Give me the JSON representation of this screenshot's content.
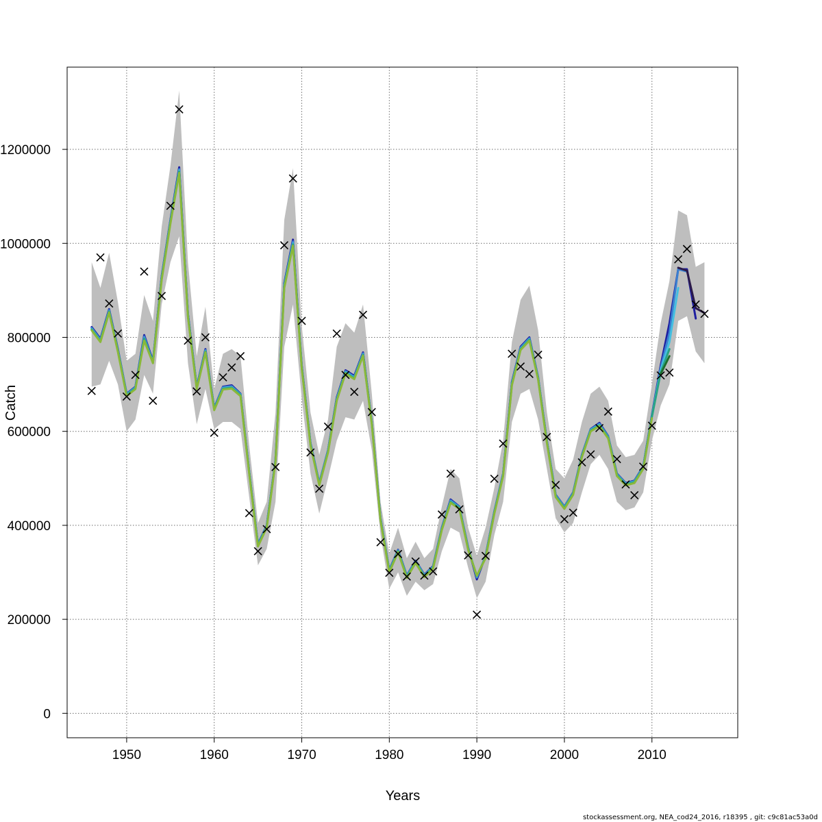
{
  "chart_data": {
    "type": "line",
    "title": "",
    "xlabel": "Years",
    "ylabel": "Catch",
    "footer": "stockassessment.org, NEA_cod24_2016, r18395 , git: c9c81ac53a0d",
    "xlim": [
      1943.2,
      2019.8
    ],
    "ylim": [
      -52000,
      1375000
    ],
    "x_ticks": [
      1950,
      1960,
      1970,
      1980,
      1990,
      2000,
      2010
    ],
    "x_tick_labels": [
      "1950",
      "1960",
      "1970",
      "1980",
      "1990",
      "2000",
      "2010"
    ],
    "y_ticks": [
      0,
      200000,
      400000,
      600000,
      800000,
      1000000,
      1200000
    ],
    "y_tick_labels": [
      "0",
      "200000",
      "400000",
      "600000",
      "800000",
      "1000000",
      "1200000"
    ],
    "grid": true,
    "confidence_band": {
      "x": [
        1946,
        1947,
        1948,
        1949,
        1950,
        1951,
        1952,
        1953,
        1954,
        1955,
        1956,
        1957,
        1958,
        1959,
        1960,
        1961,
        1962,
        1963,
        1964,
        1965,
        1966,
        1967,
        1968,
        1969,
        1970,
        1971,
        1972,
        1973,
        1974,
        1975,
        1976,
        1977,
        1978,
        1979,
        1980,
        1981,
        1982,
        1983,
        1984,
        1985,
        1986,
        1987,
        1988,
        1989,
        1990,
        1991,
        1992,
        1993,
        1994,
        1995,
        1996,
        1997,
        1998,
        1999,
        2000,
        2001,
        2002,
        2003,
        2004,
        2005,
        2006,
        2007,
        2008,
        2009,
        2010,
        2011,
        2012,
        2013,
        2014,
        2015,
        2016
      ],
      "upper": [
        960000,
        905000,
        980000,
        875000,
        750000,
        765000,
        890000,
        835000,
        1035000,
        1165000,
        1325000,
        960000,
        760000,
        865000,
        690000,
        765000,
        775000,
        760000,
        570000,
        405000,
        450000,
        640000,
        1050000,
        1160000,
        825000,
        640000,
        550000,
        625000,
        780000,
        830000,
        810000,
        870000,
        680000,
        450000,
        340000,
        395000,
        330000,
        365000,
        330000,
        350000,
        440000,
        520000,
        500000,
        395000,
        335000,
        395000,
        480000,
        580000,
        790000,
        880000,
        910000,
        815000,
        640000,
        520000,
        500000,
        540000,
        620000,
        680000,
        695000,
        665000,
        570000,
        545000,
        550000,
        580000,
        700000,
        830000,
        920000,
        1070000,
        1060000,
        950000,
        960000
      ],
      "lower": [
        695000,
        700000,
        750000,
        700000,
        600000,
        625000,
        720000,
        680000,
        870000,
        960000,
        1015000,
        745000,
        615000,
        690000,
        605000,
        620000,
        620000,
        605000,
        460000,
        315000,
        350000,
        450000,
        780000,
        870000,
        670000,
        510000,
        425000,
        500000,
        580000,
        630000,
        625000,
        665000,
        560000,
        380000,
        265000,
        300000,
        250000,
        280000,
        262000,
        275000,
        345000,
        395000,
        385000,
        310000,
        245000,
        280000,
        380000,
        450000,
        620000,
        680000,
        690000,
        625000,
        520000,
        415000,
        385000,
        405000,
        470000,
        530000,
        550000,
        520000,
        450000,
        432000,
        438000,
        470000,
        580000,
        655000,
        700000,
        835000,
        845000,
        770000,
        745000
      ]
    },
    "series": [
      {
        "color": "#1e1ea0",
        "x": [
          1946,
          1947,
          1948,
          1949,
          1950,
          1951,
          1952,
          1953,
          1954,
          1955,
          1956,
          1957,
          1958,
          1959,
          1960,
          1961,
          1962,
          1963,
          1964,
          1965,
          1966,
          1967,
          1968,
          1969,
          1970,
          1971,
          1972,
          1973,
          1974,
          1975,
          1976,
          1977,
          1978,
          1979,
          1980,
          1981,
          1982,
          1983,
          1984,
          1985,
          1986,
          1987,
          1988,
          1989,
          1990,
          1991,
          1992,
          1993,
          1994,
          1995,
          1996,
          1997,
          1998,
          1999,
          2000,
          2001,
          2002,
          2003,
          2004,
          2005,
          2006,
          2007,
          2008,
          2009,
          2010,
          2011,
          2012,
          2013,
          2014,
          2015
        ],
        "values": [
          822000,
          797000,
          860000,
          775000,
          680000,
          695000,
          805000,
          750000,
          930000,
          1050000,
          1162000,
          850000,
          695000,
          775000,
          650000,
          695000,
          698000,
          680000,
          515000,
          360000,
          400000,
          540000,
          915000,
          1008000,
          740000,
          575000,
          490000,
          560000,
          672000,
          730000,
          718000,
          768000,
          620000,
          415000,
          305000,
          348000,
          293000,
          325000,
          295000,
          313000,
          395000,
          455000,
          440000,
          353000,
          285000,
          335000,
          430000,
          510000,
          705000,
          780000,
          800000,
          715000,
          580000,
          465000,
          440000,
          470000,
          550000,
          605000,
          618000,
          590000,
          510000,
          490000,
          495000,
          525000,
          635000,
          740000,
          830000,
          945000,
          945000,
          840000
        ]
      },
      {
        "color": "#3a7fd0",
        "x": [
          1946,
          1947,
          1948,
          1949,
          1950,
          1951,
          1952,
          1953,
          1954,
          1955,
          1956,
          1957,
          1958,
          1959,
          1960,
          1961,
          1962,
          1963,
          1964,
          1965,
          1966,
          1967,
          1968,
          1969,
          1970,
          1971,
          1972,
          1973,
          1974,
          1975,
          1976,
          1977,
          1978,
          1979,
          1980,
          1981,
          1982,
          1983,
          1984,
          1985,
          1986,
          1987,
          1988,
          1989,
          1990,
          1991,
          1992,
          1993,
          1994,
          1995,
          1996,
          1997,
          1998,
          1999,
          2000,
          2001,
          2002,
          2003,
          2004,
          2005,
          2006,
          2007,
          2008,
          2009,
          2010,
          2011,
          2012,
          2013,
          2014
        ],
        "values": [
          820000,
          795000,
          858000,
          773000,
          679000,
          694000,
          802000,
          748000,
          928000,
          1048000,
          1158000,
          848000,
          694000,
          773000,
          649000,
          694000,
          696000,
          679000,
          514000,
          359000,
          399000,
          539000,
          912000,
          1004000,
          738000,
          574000,
          489000,
          559000,
          670000,
          728000,
          716000,
          766000,
          619000,
          414000,
          304000,
          347000,
          292000,
          324000,
          294000,
          312000,
          394000,
          453000,
          439000,
          352000,
          289000,
          334000,
          429000,
          509000,
          703000,
          778000,
          798000,
          714000,
          579000,
          464000,
          439000,
          469000,
          549000,
          604000,
          616000,
          589000,
          509000,
          489000,
          494000,
          524000,
          633000,
          735000,
          810000,
          945000,
          940000
        ]
      },
      {
        "color": "#44bfe0",
        "x": [
          1946,
          1947,
          1948,
          1949,
          1950,
          1951,
          1952,
          1953,
          1954,
          1955,
          1956,
          1957,
          1958,
          1959,
          1960,
          1961,
          1962,
          1963,
          1964,
          1965,
          1966,
          1967,
          1968,
          1969,
          1970,
          1971,
          1972,
          1973,
          1974,
          1975,
          1976,
          1977,
          1978,
          1979,
          1980,
          1981,
          1982,
          1983,
          1984,
          1985,
          1986,
          1987,
          1988,
          1989,
          1990,
          1991,
          1992,
          1993,
          1994,
          1995,
          1996,
          1997,
          1998,
          1999,
          2000,
          2001,
          2002,
          2003,
          2004,
          2005,
          2006,
          2007,
          2008,
          2009,
          2010,
          2011,
          2012,
          2013
        ],
        "values": [
          818000,
          793000,
          856000,
          772000,
          678000,
          693000,
          798000,
          747000,
          926000,
          1046000,
          1155000,
          846000,
          693000,
          771000,
          648000,
          692000,
          694000,
          678000,
          513000,
          358000,
          398000,
          538000,
          910000,
          1000000,
          737000,
          573000,
          488000,
          558000,
          668000,
          726000,
          714000,
          764000,
          618000,
          413000,
          303000,
          346000,
          291000,
          323000,
          293000,
          311000,
          393000,
          451000,
          438000,
          351000,
          291000,
          333000,
          428000,
          508000,
          701000,
          776000,
          796000,
          713000,
          578000,
          463000,
          438000,
          468000,
          548000,
          603000,
          614000,
          588000,
          508000,
          488000,
          493000,
          523000,
          632000,
          730000,
          790000,
          905000
        ]
      },
      {
        "color": "#2aa384",
        "x": [
          1946,
          1947,
          1948,
          1949,
          1950,
          1951,
          1952,
          1953,
          1954,
          1955,
          1956,
          1957,
          1958,
          1959,
          1960,
          1961,
          1962,
          1963,
          1964,
          1965,
          1966,
          1967,
          1968,
          1969,
          1970,
          1971,
          1972,
          1973,
          1974,
          1975,
          1976,
          1977,
          1978,
          1979,
          1980,
          1981,
          1982,
          1983,
          1984,
          1985,
          1986,
          1987,
          1988,
          1989,
          1990,
          1991,
          1992,
          1993,
          1994,
          1995,
          1996,
          1997,
          1998,
          1999,
          2000,
          2001,
          2002,
          2003,
          2004,
          2005,
          2006,
          2007,
          2008,
          2009,
          2010,
          2011,
          2012
        ],
        "values": [
          817000,
          792000,
          855000,
          771000,
          677000,
          692000,
          797000,
          746000,
          925000,
          1045000,
          1153000,
          845000,
          692000,
          770000,
          647000,
          691000,
          693000,
          677000,
          512000,
          357000,
          397000,
          537000,
          908000,
          998000,
          736000,
          572000,
          487000,
          557000,
          667000,
          725000,
          713000,
          763000,
          617000,
          412000,
          302000,
          345000,
          290000,
          322000,
          292000,
          310000,
          392000,
          450000,
          437000,
          350000,
          292000,
          332000,
          427000,
          507000,
          700000,
          775000,
          795000,
          712000,
          577000,
          462000,
          437000,
          467000,
          547000,
          602000,
          613000,
          587000,
          507000,
          487000,
          492000,
          522000,
          631000,
          725000,
          775000
        ]
      },
      {
        "color": "#8ab83a",
        "x": [
          1946,
          1947,
          1948,
          1949,
          1950,
          1951,
          1952,
          1953,
          1954,
          1955,
          1956,
          1957,
          1958,
          1959,
          1960,
          1961,
          1962,
          1963,
          1964,
          1965,
          1966,
          1967,
          1968,
          1969,
          1970,
          1971,
          1972,
          1973,
          1974,
          1975,
          1976,
          1977,
          1978,
          1979,
          1980,
          1981,
          1982,
          1983,
          1984,
          1985,
          1986,
          1987,
          1988,
          1989,
          1990,
          1991,
          1992,
          1993,
          1994,
          1995,
          1996,
          1997,
          1998,
          1999,
          2000,
          2001,
          2002,
          2003,
          2004,
          2005,
          2006,
          2007,
          2008,
          2009,
          2010
        ],
        "values": [
          815000,
          790000,
          853000,
          769000,
          675000,
          690000,
          793000,
          745000,
          922000,
          1042000,
          1150000,
          843000,
          690000,
          768000,
          645000,
          689000,
          691000,
          675000,
          510000,
          355000,
          395000,
          535000,
          905000,
          995000,
          734000,
          570000,
          485000,
          555000,
          665000,
          723000,
          711000,
          761000,
          615000,
          410000,
          300000,
          343000,
          288000,
          320000,
          290000,
          308000,
          390000,
          448000,
          435000,
          348000,
          293000,
          330000,
          425000,
          505000,
          698000,
          773000,
          793000,
          710000,
          575000,
          460000,
          435000,
          465000,
          545000,
          600000,
          611000,
          585000,
          505000,
          485000,
          490000,
          520000,
          628000
        ]
      },
      {
        "color": "#1f6e2e",
        "x": [
          2011,
          2012
        ],
        "values": [
          722000,
          760000
        ]
      },
      {
        "color": "#2b1a4a",
        "x": [
          2013,
          2014,
          2015,
          2016
        ],
        "values": [
          948000,
          942000,
          862000,
          852000
        ]
      }
    ],
    "observations": {
      "x": [
        1946,
        1947,
        1948,
        1949,
        1950,
        1951,
        1952,
        1953,
        1954,
        1955,
        1956,
        1957,
        1958,
        1959,
        1960,
        1961,
        1962,
        1963,
        1964,
        1965,
        1966,
        1967,
        1968,
        1969,
        1970,
        1971,
        1972,
        1973,
        1974,
        1975,
        1976,
        1977,
        1978,
        1979,
        1980,
        1981,
        1982,
        1983,
        1984,
        1985,
        1986,
        1987,
        1988,
        1989,
        1990,
        1991,
        1992,
        1993,
        1994,
        1995,
        1996,
        1997,
        1998,
        1999,
        2000,
        2001,
        2002,
        2003,
        2004,
        2005,
        2006,
        2007,
        2008,
        2009,
        2010,
        2011,
        2012,
        2013,
        2014,
        2015,
        2016
      ],
      "values": [
        686000,
        970000,
        872000,
        808000,
        674000,
        720000,
        940000,
        665000,
        888000,
        1080000,
        1285000,
        793000,
        685000,
        800000,
        597000,
        715000,
        736000,
        760000,
        426000,
        345000,
        392000,
        524000,
        996000,
        1138000,
        835000,
        555000,
        478000,
        610000,
        808000,
        720000,
        684000,
        848000,
        641000,
        364000,
        299000,
        339000,
        291000,
        323000,
        293000,
        302000,
        423000,
        510000,
        434000,
        336000,
        210000,
        335000,
        499000,
        574000,
        765000,
        738000,
        722000,
        763000,
        588000,
        486000,
        413000,
        427000,
        534000,
        551000,
        607000,
        642000,
        541000,
        487000,
        464000,
        525000,
        612000,
        719000,
        725000,
        966000,
        988000,
        870000,
        850000
      ]
    }
  }
}
